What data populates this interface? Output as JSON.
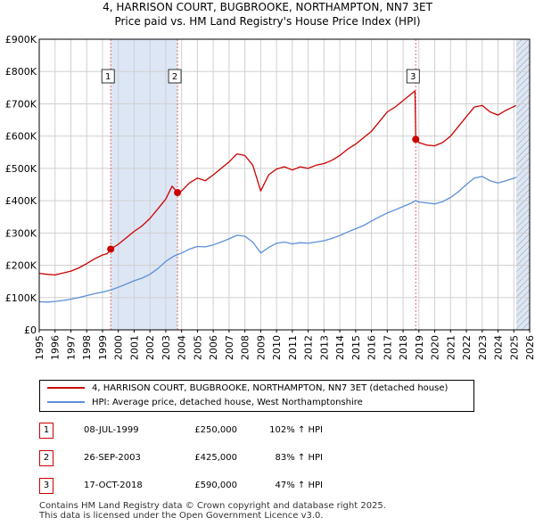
{
  "title": {
    "line1": "4, HARRISON COURT, BUGBROOKE, NORTHAMPTON, NN7 3ET",
    "line2": "Price paid vs. HM Land Registry's House Price Index (HPI)"
  },
  "colors": {
    "property": "#cc0000",
    "hpi": "#5b8fd6",
    "shade": "#dde6f5",
    "marker_line": "#e06666",
    "grid": "#d0d0d0"
  },
  "chart_data": {
    "type": "line",
    "title": "Price paid vs. HM Land Registry's House Price Index (HPI)",
    "x_tick_labels": [
      "1995",
      "1996",
      "1997",
      "1998",
      "1999",
      "2000",
      "2001",
      "2002",
      "2003",
      "2004",
      "2005",
      "2006",
      "2007",
      "2008",
      "2009",
      "2010",
      "2011",
      "2012",
      "2013",
      "2014",
      "2015",
      "2016",
      "2017",
      "2018",
      "2019",
      "2020",
      "2021",
      "2022",
      "2023",
      "2024",
      "2025",
      "2026"
    ],
    "x_ticks": [
      1995,
      1996,
      1997,
      1998,
      1999,
      2000,
      2001,
      2002,
      2003,
      2004,
      2005,
      2006,
      2007,
      2008,
      2009,
      2010,
      2011,
      2012,
      2013,
      2014,
      2015,
      2016,
      2017,
      2018,
      2019,
      2020,
      2021,
      2022,
      2023,
      2024,
      2025,
      2026
    ],
    "xlim": [
      1995,
      2026
    ],
    "ylim": [
      0,
      900000
    ],
    "y_ticks": [
      0,
      100000,
      200000,
      300000,
      400000,
      500000,
      600000,
      700000,
      800000,
      900000
    ],
    "y_tick_labels": [
      "£0",
      "£100K",
      "£200K",
      "£300K",
      "£400K",
      "£500K",
      "£600K",
      "£700K",
      "£800K",
      "£900K"
    ],
    "shaded_ranges": [
      [
        1999.52,
        2003.74
      ],
      [
        2025.15,
        2026
      ]
    ],
    "hatched_range": [
      2025.15,
      2026
    ],
    "series": [
      {
        "name": "4, HARRISON COURT, BUGBROOKE, NORTHAMPTON, NN7 3ET (detached house)",
        "color": "#cc0000",
        "points": [
          [
            1995.0,
            175000
          ],
          [
            1995.5,
            172000
          ],
          [
            1996.0,
            170000
          ],
          [
            1996.5,
            176000
          ],
          [
            1997.0,
            182000
          ],
          [
            1997.5,
            192000
          ],
          [
            1998.0,
            205000
          ],
          [
            1998.5,
            220000
          ],
          [
            1999.0,
            232000
          ],
          [
            1999.3,
            236000
          ],
          [
            1999.52,
            250000
          ],
          [
            2000.0,
            265000
          ],
          [
            2000.5,
            285000
          ],
          [
            2001.0,
            305000
          ],
          [
            2001.5,
            322000
          ],
          [
            2002.0,
            345000
          ],
          [
            2002.5,
            375000
          ],
          [
            2003.0,
            405000
          ],
          [
            2003.4,
            445000
          ],
          [
            2003.74,
            425000
          ],
          [
            2004.0,
            430000
          ],
          [
            2004.5,
            455000
          ],
          [
            2005.0,
            470000
          ],
          [
            2005.5,
            462000
          ],
          [
            2006.0,
            480000
          ],
          [
            2006.5,
            500000
          ],
          [
            2007.0,
            520000
          ],
          [
            2007.5,
            545000
          ],
          [
            2008.0,
            540000
          ],
          [
            2008.5,
            510000
          ],
          [
            2009.0,
            430000
          ],
          [
            2009.5,
            480000
          ],
          [
            2010.0,
            498000
          ],
          [
            2010.5,
            505000
          ],
          [
            2011.0,
            495000
          ],
          [
            2011.5,
            505000
          ],
          [
            2012.0,
            500000
          ],
          [
            2012.5,
            510000
          ],
          [
            2013.0,
            515000
          ],
          [
            2013.5,
            525000
          ],
          [
            2014.0,
            540000
          ],
          [
            2014.5,
            560000
          ],
          [
            2015.0,
            575000
          ],
          [
            2015.5,
            595000
          ],
          [
            2016.0,
            615000
          ],
          [
            2016.5,
            645000
          ],
          [
            2017.0,
            675000
          ],
          [
            2017.5,
            690000
          ],
          [
            2018.0,
            710000
          ],
          [
            2018.5,
            730000
          ],
          [
            2018.75,
            740000
          ],
          [
            2018.8,
            590000
          ],
          [
            2019.0,
            580000
          ],
          [
            2019.5,
            572000
          ],
          [
            2020.0,
            570000
          ],
          [
            2020.5,
            580000
          ],
          [
            2021.0,
            600000
          ],
          [
            2021.5,
            630000
          ],
          [
            2022.0,
            660000
          ],
          [
            2022.5,
            690000
          ],
          [
            2023.0,
            695000
          ],
          [
            2023.5,
            675000
          ],
          [
            2024.0,
            665000
          ],
          [
            2024.5,
            680000
          ],
          [
            2025.15,
            695000
          ]
        ]
      },
      {
        "name": "HPI: Average price, detached house, West Northamptonshire",
        "color": "#5b8fd6",
        "points": [
          [
            1995.0,
            87000
          ],
          [
            1995.5,
            86000
          ],
          [
            1996.0,
            88000
          ],
          [
            1996.5,
            91000
          ],
          [
            1997.0,
            95000
          ],
          [
            1997.5,
            100000
          ],
          [
            1998.0,
            106000
          ],
          [
            1998.5,
            112000
          ],
          [
            1999.0,
            117000
          ],
          [
            1999.52,
            123000
          ],
          [
            2000.0,
            132000
          ],
          [
            2000.5,
            142000
          ],
          [
            2001.0,
            152000
          ],
          [
            2001.5,
            160000
          ],
          [
            2002.0,
            172000
          ],
          [
            2002.5,
            190000
          ],
          [
            2003.0,
            212000
          ],
          [
            2003.5,
            228000
          ],
          [
            2003.74,
            233000
          ],
          [
            2004.0,
            238000
          ],
          [
            2004.5,
            250000
          ],
          [
            2005.0,
            258000
          ],
          [
            2005.5,
            257000
          ],
          [
            2006.0,
            263000
          ],
          [
            2006.5,
            272000
          ],
          [
            2007.0,
            282000
          ],
          [
            2007.5,
            293000
          ],
          [
            2008.0,
            290000
          ],
          [
            2008.5,
            272000
          ],
          [
            2009.0,
            238000
          ],
          [
            2009.5,
            255000
          ],
          [
            2010.0,
            268000
          ],
          [
            2010.5,
            272000
          ],
          [
            2011.0,
            266000
          ],
          [
            2011.5,
            270000
          ],
          [
            2012.0,
            268000
          ],
          [
            2012.5,
            272000
          ],
          [
            2013.0,
            276000
          ],
          [
            2013.5,
            283000
          ],
          [
            2014.0,
            292000
          ],
          [
            2014.5,
            303000
          ],
          [
            2015.0,
            313000
          ],
          [
            2015.5,
            323000
          ],
          [
            2016.0,
            337000
          ],
          [
            2016.5,
            350000
          ],
          [
            2017.0,
            362000
          ],
          [
            2017.5,
            372000
          ],
          [
            2018.0,
            382000
          ],
          [
            2018.5,
            392000
          ],
          [
            2018.8,
            400000
          ],
          [
            2019.0,
            396000
          ],
          [
            2019.5,
            393000
          ],
          [
            2020.0,
            390000
          ],
          [
            2020.5,
            397000
          ],
          [
            2021.0,
            410000
          ],
          [
            2021.5,
            428000
          ],
          [
            2022.0,
            450000
          ],
          [
            2022.5,
            470000
          ],
          [
            2023.0,
            475000
          ],
          [
            2023.5,
            462000
          ],
          [
            2024.0,
            455000
          ],
          [
            2024.5,
            462000
          ],
          [
            2025.15,
            472000
          ]
        ]
      }
    ],
    "markers": [
      {
        "label": "1",
        "x": 1999.52,
        "y": 250000
      },
      {
        "label": "2",
        "x": 2003.74,
        "y": 425000
      },
      {
        "label": "3",
        "x": 2018.8,
        "y": 590000
      }
    ]
  },
  "legend": {
    "property_label": "4, HARRISON COURT, BUGBROOKE, NORTHAMPTON, NN7 3ET (detached house)",
    "hpi_label": "HPI: Average price, detached house, West Northamptonshire"
  },
  "transactions": [
    {
      "num": "1",
      "date": "08-JUL-1999",
      "price": "£250,000",
      "hpi": "102% ↑ HPI"
    },
    {
      "num": "2",
      "date": "26-SEP-2003",
      "price": "£425,000",
      "hpi": "83% ↑ HPI"
    },
    {
      "num": "3",
      "date": "17-OCT-2018",
      "price": "£590,000",
      "hpi": "47% ↑ HPI"
    }
  ],
  "footer": {
    "line1": "Contains HM Land Registry data © Crown copyright and database right 2025.",
    "line2": "This data is licensed under the Open Government Licence v3.0."
  }
}
